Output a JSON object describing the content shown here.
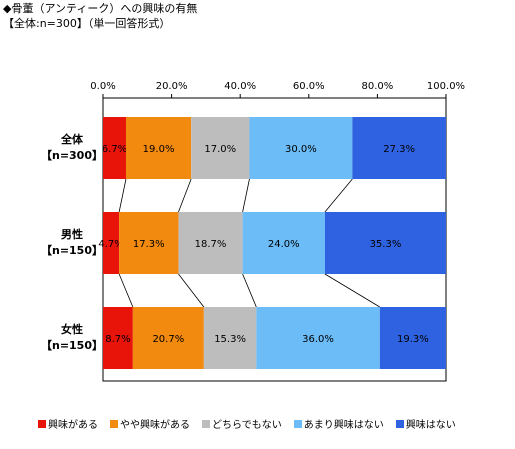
{
  "header": {
    "title": "◆骨董（アンティーク）への興味の有無",
    "subtitle": "【全体:n=300】（単一回答形式）"
  },
  "chart_data": {
    "type": "bar",
    "orientation": "horizontal",
    "stacked": true,
    "percent_stacked": true,
    "categories": [
      {
        "line1": "全体",
        "line2": "【n=300】"
      },
      {
        "line1": "男性",
        "line2": "【n=150】"
      },
      {
        "line1": "女性",
        "line2": "【n=150】"
      }
    ],
    "series": [
      {
        "name": "興味がある",
        "color": "#e8140a",
        "values": [
          6.7,
          4.7,
          8.7
        ]
      },
      {
        "name": "やや興味がある",
        "color": "#f28a0f",
        "values": [
          19.0,
          17.3,
          20.7
        ]
      },
      {
        "name": "どちらでもない",
        "color": "#bdbdbd",
        "values": [
          17.0,
          18.7,
          15.3
        ]
      },
      {
        "name": "あまり興味はない",
        "color": "#6bbcf7",
        "values": [
          30.0,
          24.0,
          36.0
        ]
      },
      {
        "name": "興味はない",
        "color": "#2f62e0",
        "values": [
          27.3,
          35.3,
          19.3
        ]
      }
    ],
    "value_labels": [
      [
        "6.7%",
        "19.0%",
        "17.0%",
        "30.0%",
        "27.3%"
      ],
      [
        "4.7%",
        "17.3%",
        "18.7%",
        "24.0%",
        "35.3%"
      ],
      [
        "8.7%",
        "20.7%",
        "15.3%",
        "36.0%",
        "19.3%"
      ]
    ],
    "xlim": [
      0,
      100
    ],
    "xticks": [
      "0.0%",
      "20.0%",
      "40.0%",
      "60.0%",
      "80.0%",
      "100.0%"
    ],
    "xaxis_position": "top",
    "legend_position": "bottom",
    "series_lines": true,
    "grid": false
  }
}
